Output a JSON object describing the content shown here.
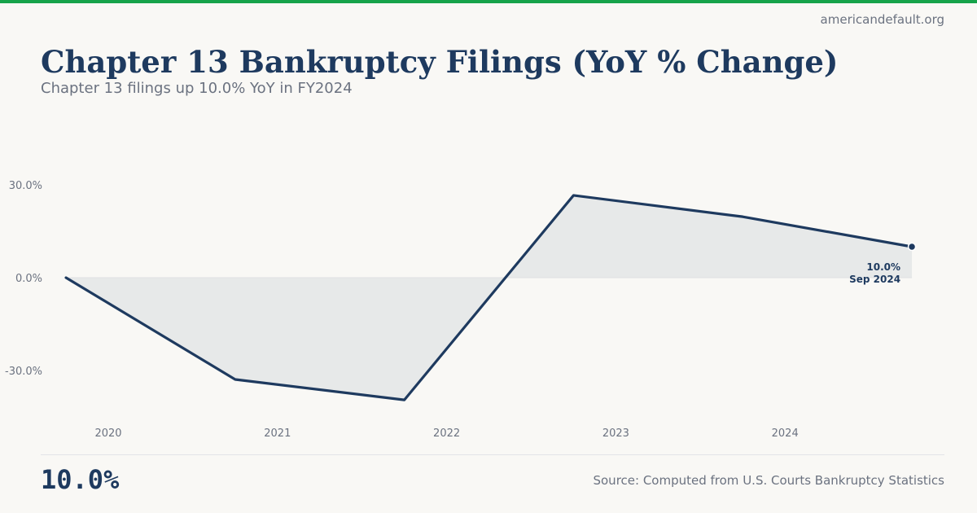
{
  "header": {
    "site": "americandefault.org",
    "title": "Chapter 13 Bankruptcy Filings (YoY % Change)",
    "subtitle": "Chapter 13 filings up 10.0% YoY in FY2024"
  },
  "footer": {
    "big_value": "10.0%",
    "source": "Source: Computed from U.S. Courts Bankruptcy Statistics"
  },
  "colors": {
    "accent": "#16a34a",
    "line": "#1e3a5f",
    "fill": "#e7e9e9"
  },
  "chart_data": {
    "type": "area",
    "title": "Chapter 13 Bankruptcy Filings (YoY % Change)",
    "x": [
      "Sep 2019",
      "Sep 2020",
      "Sep 2021",
      "Sep 2022",
      "Sep 2023",
      "Sep 2024"
    ],
    "x_years": [
      2019.75,
      2020.75,
      2021.75,
      2022.75,
      2023.75,
      2024.75
    ],
    "values": [
      0.0,
      -32.9,
      -39.5,
      26.6,
      19.7,
      10.0
    ],
    "ylim": [
      -30,
      30
    ],
    "yticks": [
      {
        "v": 30,
        "label": "30.0%"
      },
      {
        "v": 0,
        "label": "0.0%"
      },
      {
        "v": -30,
        "label": "-30.0%"
      }
    ],
    "xticks": [
      {
        "v": 2020,
        "label": "2020"
      },
      {
        "v": 2021,
        "label": "2021"
      },
      {
        "v": 2022,
        "label": "2022"
      },
      {
        "v": 2023,
        "label": "2023"
      },
      {
        "v": 2024,
        "label": "2024"
      }
    ],
    "annotation": {
      "value": "10.0%",
      "date": "Sep 2024"
    }
  }
}
